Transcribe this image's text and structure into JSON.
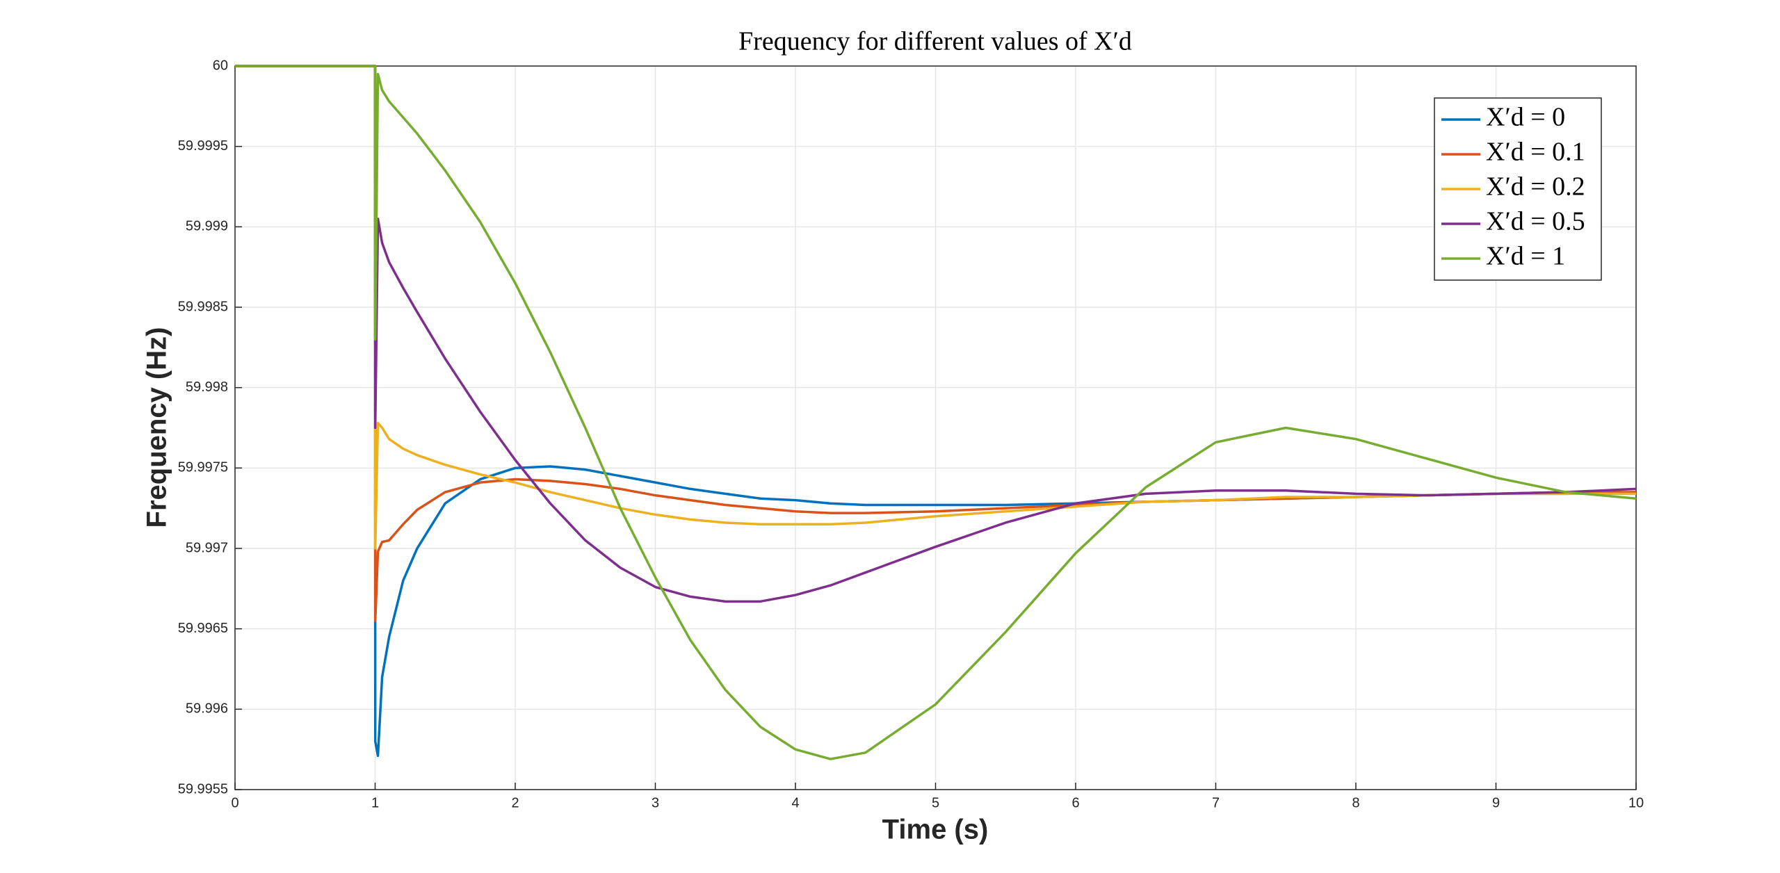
{
  "chart_data": {
    "type": "line",
    "title": "Frequency for different values of X′d",
    "x_label": "Time (s)",
    "y_label": "Frequency (Hz)",
    "x": [
      0,
      1,
      1.001,
      1.02,
      1.05,
      1.1,
      1.2,
      1.3,
      1.5,
      1.75,
      2,
      2.25,
      2.5,
      2.75,
      3,
      3.25,
      3.5,
      3.75,
      4,
      4.25,
      4.5,
      5,
      5.5,
      6,
      6.5,
      7,
      7.5,
      8,
      8.5,
      9,
      9.5,
      10
    ],
    "series": [
      {
        "name": "X′d = 0",
        "color": "#0072BD",
        "values": [
          60,
          60,
          59.9958,
          59.99571,
          59.9962,
          59.99645,
          59.9968,
          59.997,
          59.99728,
          59.99743,
          59.9975,
          59.99751,
          59.99749,
          59.99745,
          59.99741,
          59.99737,
          59.99734,
          59.99731,
          59.9973,
          59.99728,
          59.99727,
          59.99727,
          59.99727,
          59.99728,
          59.99729,
          59.9973,
          59.99731,
          59.99732,
          59.99733,
          59.99734,
          59.99734,
          59.99735
        ]
      },
      {
        "name": "X′d = 0.1",
        "color": "#D95319",
        "values": [
          60,
          60,
          59.99655,
          59.99698,
          59.99704,
          59.99705,
          59.99715,
          59.99724,
          59.99735,
          59.99741,
          59.99743,
          59.99742,
          59.9974,
          59.99737,
          59.99733,
          59.9973,
          59.99727,
          59.99725,
          59.99723,
          59.99722,
          59.99722,
          59.99723,
          59.99725,
          59.99727,
          59.99729,
          59.9973,
          59.99731,
          59.99732,
          59.99733,
          59.99734,
          59.99735,
          59.99735
        ]
      },
      {
        "name": "X′d = 0.2",
        "color": "#EDB120",
        "values": [
          60,
          60,
          59.997,
          59.99778,
          59.99775,
          59.99768,
          59.99762,
          59.99758,
          59.99752,
          59.99746,
          59.99741,
          59.99735,
          59.9973,
          59.99725,
          59.99721,
          59.99718,
          59.99716,
          59.99715,
          59.99715,
          59.99715,
          59.99716,
          59.9972,
          59.99723,
          59.99726,
          59.99729,
          59.9973,
          59.99732,
          59.99732,
          59.99733,
          59.99734,
          59.99734,
          59.99734
        ]
      },
      {
        "name": "X′d = 0.5",
        "color": "#7E2F8E",
        "values": [
          60,
          60,
          59.99775,
          59.99905,
          59.9989,
          59.99878,
          59.99862,
          59.99847,
          59.99818,
          59.99785,
          59.99755,
          59.99728,
          59.99705,
          59.99688,
          59.99676,
          59.9967,
          59.99667,
          59.99667,
          59.99671,
          59.99677,
          59.99685,
          59.99701,
          59.99716,
          59.99728,
          59.99734,
          59.99736,
          59.99736,
          59.99734,
          59.99733,
          59.99734,
          59.99735,
          59.99737
        ]
      },
      {
        "name": "X′d = 1",
        "color": "#77AC30",
        "values": [
          60,
          60,
          59.9983,
          59.99995,
          59.99985,
          59.99978,
          59.99968,
          59.99958,
          59.99935,
          59.99903,
          59.99865,
          59.99822,
          59.99775,
          59.99725,
          59.99682,
          59.99643,
          59.99612,
          59.99589,
          59.99575,
          59.99569,
          59.99573,
          59.99603,
          59.99648,
          59.99697,
          59.99738,
          59.99766,
          59.99775,
          59.99768,
          59.99756,
          59.99744,
          59.99735,
          59.99731
        ]
      }
    ],
    "xlim": [
      0,
      10
    ],
    "xticks": [
      0,
      1,
      2,
      3,
      4,
      5,
      6,
      7,
      8,
      9,
      10
    ],
    "ylim": [
      59.9955,
      60
    ],
    "yticks": [
      59.9955,
      59.996,
      59.9965,
      59.997,
      59.9975,
      59.998,
      59.9985,
      59.999,
      59.9995,
      60
    ],
    "grid": true,
    "legend": "upper right"
  }
}
